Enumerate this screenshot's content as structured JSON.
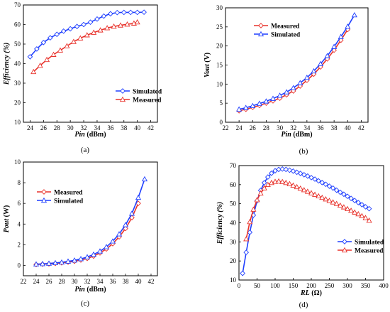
{
  "chart_data": [
    {
      "type": "line",
      "caption": "(a)",
      "xlabel": "Pin",
      "xunit": " (dBm)",
      "ylabel": "Efficiency (%)",
      "xlim": [
        23,
        43
      ],
      "ylim": [
        10,
        70
      ],
      "xticks": [
        24,
        26,
        28,
        30,
        32,
        34,
        36,
        38,
        40,
        42
      ],
      "yticks": [
        10,
        20,
        30,
        40,
        50,
        60,
        70
      ],
      "legend_position": "bottom-right",
      "series": [
        {
          "name": "Simulated",
          "color": "#1f3fff",
          "marker": "diamond",
          "x": [
            24,
            25,
            26,
            27,
            28,
            29,
            30,
            31,
            32,
            33,
            34,
            35,
            36,
            37,
            38,
            39,
            40,
            41
          ],
          "y": [
            43.5,
            47.5,
            50.8,
            53.2,
            55.0,
            56.6,
            57.8,
            59.0,
            60.0,
            61.2,
            62.8,
            64.3,
            65.5,
            66.1,
            66.2,
            66.2,
            66.2,
            66.3
          ]
        },
        {
          "name": "Measured",
          "color": "#e8322b",
          "marker": "triangle",
          "x": [
            24.5,
            25.5,
            26.5,
            27.5,
            28.5,
            29.5,
            30.5,
            31.5,
            32.5,
            33.5,
            34.5,
            35.5,
            36.5,
            37.5,
            38.5,
            39.5,
            40
          ],
          "y": [
            35.8,
            39.0,
            42.0,
            44.6,
            46.8,
            49.0,
            51.2,
            53.0,
            54.6,
            55.9,
            57.1,
            58.2,
            59.0,
            59.6,
            60.1,
            60.6,
            61.2
          ]
        }
      ]
    },
    {
      "type": "line",
      "caption": "(b)",
      "xlabel": "Pin",
      "xunit": " (dBm)",
      "ylabel": "Vout",
      "yunit": " (V)",
      "xlim": [
        22,
        43
      ],
      "ylim": [
        0,
        30
      ],
      "xticks": [
        22,
        24,
        26,
        28,
        30,
        32,
        34,
        36,
        38,
        40,
        42
      ],
      "yticks": [
        0,
        5,
        10,
        15,
        20,
        25,
        30
      ],
      "legend_position": "top-left",
      "series": [
        {
          "name": "Measured",
          "color": "#e8322b",
          "marker": "diamond",
          "x": [
            24,
            25,
            26,
            27,
            28,
            29,
            30,
            31,
            32,
            33,
            34,
            35,
            36,
            37,
            38,
            39,
            40
          ],
          "y": [
            3.0,
            3.4,
            3.9,
            4.4,
            5.0,
            5.6,
            6.3,
            7.2,
            8.2,
            9.5,
            11.0,
            12.6,
            14.5,
            16.6,
            18.9,
            21.5,
            24.3
          ]
        },
        {
          "name": "Simulated",
          "color": "#1f3fff",
          "marker": "triangle",
          "x": [
            24,
            25,
            26,
            27,
            28,
            29,
            30,
            31,
            32,
            33,
            34,
            35,
            36,
            37,
            38,
            39,
            40,
            41
          ],
          "y": [
            3.4,
            3.8,
            4.3,
            4.9,
            5.5,
            6.2,
            7.0,
            7.9,
            9.0,
            10.3,
            11.7,
            13.4,
            15.3,
            17.4,
            19.8,
            22.4,
            25.1,
            28.1
          ]
        }
      ]
    },
    {
      "type": "line",
      "caption": "(c)",
      "xlabel": "Pin",
      "xunit": " (dBm)",
      "ylabel": "Pout",
      "yunit": " (W)",
      "xlim": [
        22,
        43
      ],
      "ylim": [
        -1,
        10
      ],
      "xticks": [
        22,
        24,
        26,
        28,
        30,
        32,
        34,
        36,
        38,
        40,
        42
      ],
      "yticks": [
        0,
        2,
        4,
        6,
        8,
        10
      ],
      "legend_position": "top-left",
      "series": [
        {
          "name": "Measured",
          "color": "#e8322b",
          "marker": "diamond",
          "x": [
            24,
            25,
            26,
            27,
            28,
            29,
            30,
            31,
            32,
            33,
            34,
            35,
            36,
            37,
            38,
            39,
            40
          ],
          "y": [
            0.09,
            0.12,
            0.15,
            0.19,
            0.25,
            0.32,
            0.4,
            0.52,
            0.67,
            0.9,
            1.21,
            1.59,
            2.1,
            2.76,
            3.57,
            4.62,
            6.0
          ]
        },
        {
          "name": "Simulated",
          "color": "#1f3fff",
          "marker": "triangle",
          "x": [
            24,
            25,
            26,
            27,
            28,
            29,
            30,
            31,
            32,
            33,
            34,
            35,
            36,
            37,
            38,
            39,
            40,
            41
          ],
          "y": [
            0.12,
            0.15,
            0.19,
            0.24,
            0.3,
            0.39,
            0.49,
            0.63,
            0.81,
            1.06,
            1.37,
            1.79,
            2.34,
            3.03,
            3.92,
            5.02,
            6.56,
            8.35
          ]
        }
      ]
    },
    {
      "type": "line",
      "caption": "(d)",
      "xlabel": "RL",
      "xunit": " (Ω)",
      "ylabel": "Efficiency (%)",
      "xlim": [
        0,
        400
      ],
      "ylim": [
        10,
        70
      ],
      "xticks": [
        0,
        50,
        100,
        150,
        200,
        250,
        300,
        350,
        400
      ],
      "yticks": [
        10,
        20,
        30,
        40,
        50,
        60,
        70
      ],
      "legend_position": "bottom-right",
      "series": [
        {
          "name": "Simulated",
          "color": "#1f3fff",
          "marker": "diamond",
          "x": [
            10,
            20,
            30,
            40,
            50,
            60,
            70,
            80,
            90,
            100,
            110,
            120,
            130,
            140,
            150,
            160,
            170,
            180,
            190,
            200,
            210,
            220,
            230,
            240,
            250,
            260,
            270,
            280,
            290,
            300,
            310,
            320,
            330,
            340,
            350,
            360
          ],
          "y": [
            13.5,
            24.5,
            35.0,
            44.0,
            51.5,
            57.0,
            61.0,
            64.0,
            66.0,
            67.3,
            68.0,
            68.2,
            68.0,
            67.6,
            67.1,
            66.5,
            65.9,
            65.2,
            64.5,
            63.7,
            62.9,
            62.0,
            61.1,
            60.2,
            59.2,
            58.2,
            57.1,
            56.0,
            55.0,
            53.9,
            52.8,
            51.7,
            50.6,
            49.5,
            48.4,
            47.4
          ]
        },
        {
          "name": "Measured",
          "color": "#e8322b",
          "marker": "triangle",
          "x": [
            20,
            30,
            40,
            50,
            60,
            70,
            80,
            90,
            100,
            110,
            120,
            130,
            140,
            150,
            160,
            170,
            180,
            190,
            200,
            210,
            220,
            230,
            240,
            250,
            260,
            270,
            280,
            290,
            300,
            310,
            320,
            330,
            340,
            350,
            360
          ],
          "y": [
            31.5,
            40.5,
            47.0,
            52.0,
            55.5,
            58.2,
            60.0,
            61.0,
            61.6,
            61.8,
            61.5,
            61.0,
            60.4,
            59.6,
            58.8,
            58.0,
            57.2,
            56.4,
            55.6,
            54.8,
            54.0,
            53.2,
            52.4,
            51.6,
            50.8,
            50.0,
            49.1,
            48.2,
            47.3,
            46.4,
            45.5,
            44.6,
            43.6,
            42.6,
            41.2
          ]
        }
      ]
    }
  ]
}
